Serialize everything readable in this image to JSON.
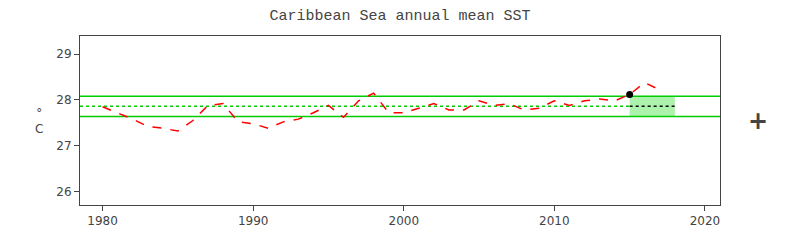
{
  "chart_data": {
    "type": "line",
    "title": "Caribbean Sea annual mean SST",
    "ylabel": "°\nC",
    "annotations": [
      "+"
    ],
    "x": [
      1980,
      1981,
      1982,
      1983,
      1984,
      1985,
      1986,
      1987,
      1988,
      1989,
      1990,
      1991,
      1992,
      1993,
      1994,
      1995,
      1996,
      1997,
      1998,
      1999,
      2000,
      2001,
      2002,
      2003,
      2004,
      2005,
      2006,
      2007,
      2008,
      2009,
      2010,
      2011,
      2012,
      2013,
      2014,
      2015,
      2016,
      2017
    ],
    "series": [
      {
        "values": [
          27.85,
          27.72,
          27.58,
          27.42,
          27.38,
          27.32,
          27.55,
          27.88,
          27.92,
          27.52,
          27.48,
          27.38,
          27.52,
          27.58,
          27.72,
          27.88,
          27.62,
          27.98,
          28.15,
          27.72,
          27.72,
          27.82,
          27.92,
          27.78,
          27.78,
          27.98,
          27.88,
          27.92,
          27.78,
          27.82,
          27.98,
          27.88,
          27.98,
          28.02,
          27.98,
          28.12,
          28.38,
          28.22
        ],
        "color": "red",
        "line_style": "dashed"
      }
    ],
    "hlines": [
      {
        "y": 28.08,
        "color": "#00cc00",
        "line_style": "solid"
      },
      {
        "y": 27.64,
        "color": "#00cc00",
        "line_style": "solid"
      }
    ],
    "segments": [
      {
        "x": [
          1978.5,
          2015.0
        ],
        "y": 27.86,
        "color": "#00cc00",
        "line_style": "dotted"
      },
      {
        "x": [
          2015.0,
          2018.0
        ],
        "y": 27.86,
        "color": "black",
        "line_style": "dotted"
      }
    ],
    "shade": {
      "x": [
        2015.0,
        2018.0
      ],
      "y": [
        27.64,
        28.08
      ],
      "color": "#90ee90"
    },
    "points": [
      {
        "x": 2015.0,
        "y": 28.12,
        "color": "black",
        "marker": "circle"
      }
    ],
    "xlim": [
      1978.5,
      2021
    ],
    "xticks": [
      1980,
      1990,
      2000,
      2010,
      2020
    ],
    "ylim": [
      25.7,
      29.4
    ],
    "yticks": [
      26,
      27,
      28,
      29
    ],
    "grid": false
  }
}
